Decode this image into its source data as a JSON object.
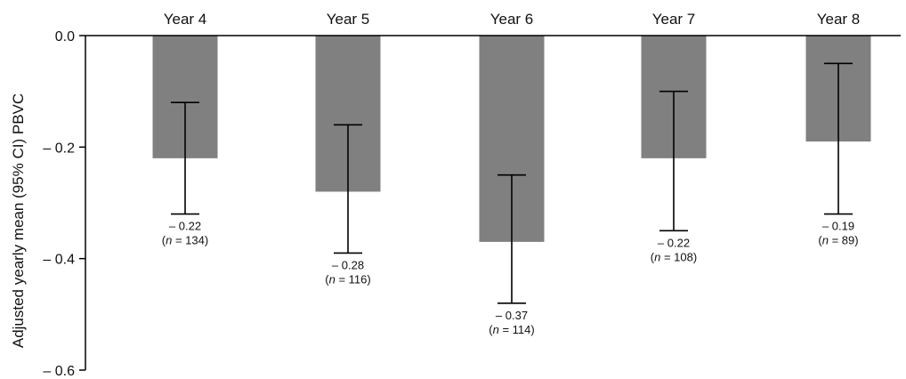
{
  "chart_data": {
    "type": "bar",
    "title": "",
    "xlabel": "",
    "ylabel": "Adjusted yearly mean (95% CI) PBVC",
    "categories": [
      "Year 4",
      "Year 5",
      "Year 6",
      "Year 7",
      "Year 8"
    ],
    "values": [
      -0.22,
      -0.28,
      -0.37,
      -0.22,
      -0.19
    ],
    "ci_lower": [
      -0.32,
      -0.39,
      -0.48,
      -0.35,
      -0.32
    ],
    "ci_upper": [
      -0.12,
      -0.16,
      -0.25,
      -0.1,
      -0.05
    ],
    "value_labels": [
      "– 0.22",
      "– 0.28",
      "– 0.37",
      "– 0.22",
      "– 0.19"
    ],
    "n_values": [
      "134",
      "116",
      "114",
      "108",
      "89"
    ],
    "n_prefix": "n",
    "n_suffix_template": " = ",
    "ylim": [
      -0.6,
      0.0
    ],
    "yticks": [
      0.0,
      -0.2,
      -0.4,
      -0.6
    ],
    "ytick_labels": [
      "0.0",
      "– 0.2",
      "– 0.4",
      "– 0.6"
    ],
    "x_axis_position": "top",
    "grid": false,
    "legend": "none",
    "bar_color": "#808080"
  }
}
